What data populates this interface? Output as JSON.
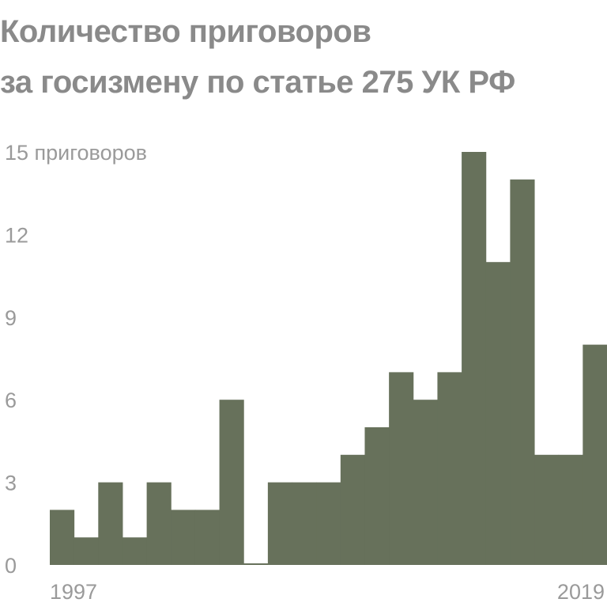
{
  "title_lines": [
    "Количество приговоров",
    "за госизмену по статье 275 УК РФ"
  ],
  "chart_data": {
    "type": "bar",
    "title": "Количество приговоров за госизмену по статье 275 УК РФ",
    "y_unit_label": "приговоров",
    "categories": [
      "1997",
      "1998",
      "1999",
      "2000",
      "2001",
      "2002",
      "2003",
      "2004",
      "2005",
      "2006",
      "2007",
      "2008",
      "2009",
      "2010",
      "2011",
      "2012",
      "2013",
      "2014",
      "2015",
      "2016",
      "2017",
      "2018",
      "2019"
    ],
    "values": [
      2,
      1,
      3,
      1,
      3,
      2,
      2,
      6,
      0,
      3,
      3,
      3,
      4,
      5,
      7,
      6,
      7,
      15,
      11,
      14,
      4,
      4,
      8
    ],
    "y_ticks": [
      0,
      3,
      6,
      9,
      12,
      15
    ],
    "x_tick_labels": [
      "1997",
      "2019"
    ],
    "ylim": [
      0,
      15
    ],
    "bar_color": "#67715b",
    "grid": false,
    "legend": "none"
  }
}
